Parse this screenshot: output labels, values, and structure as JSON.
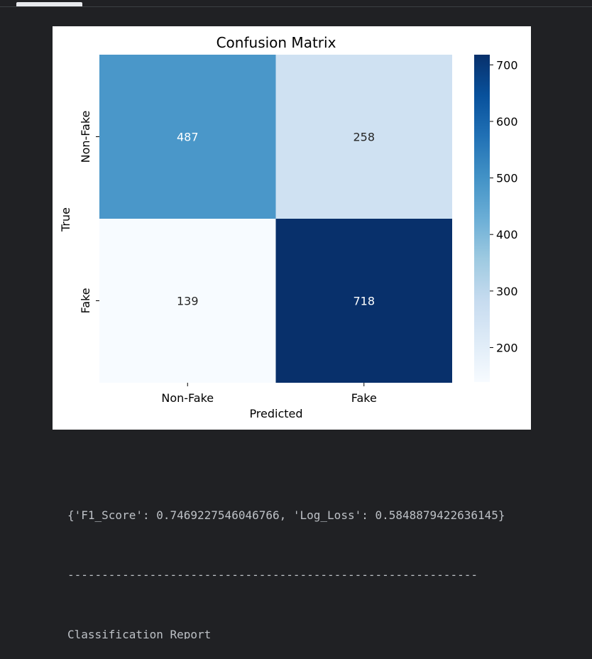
{
  "chart_data": {
    "type": "heatmap",
    "title": "Confusion Matrix",
    "xlabel": "Predicted",
    "ylabel": "True",
    "x_categories": [
      "Non-Fake",
      "Fake"
    ],
    "y_categories": [
      "Non-Fake",
      "Fake"
    ],
    "values": [
      [
        487,
        258
      ],
      [
        139,
        718
      ]
    ],
    "colorbar": {
      "min": 139,
      "max": 718,
      "ticks": [
        200,
        300,
        400,
        500,
        600,
        700
      ],
      "colormap": "Blues"
    }
  },
  "output": {
    "metrics_line": "{'F1_Score': 0.7469227546046766, 'Log_Loss': 0.5848879422636145}",
    "separator": "------------------------------------------------------------",
    "report_heading": "Classification Report"
  }
}
